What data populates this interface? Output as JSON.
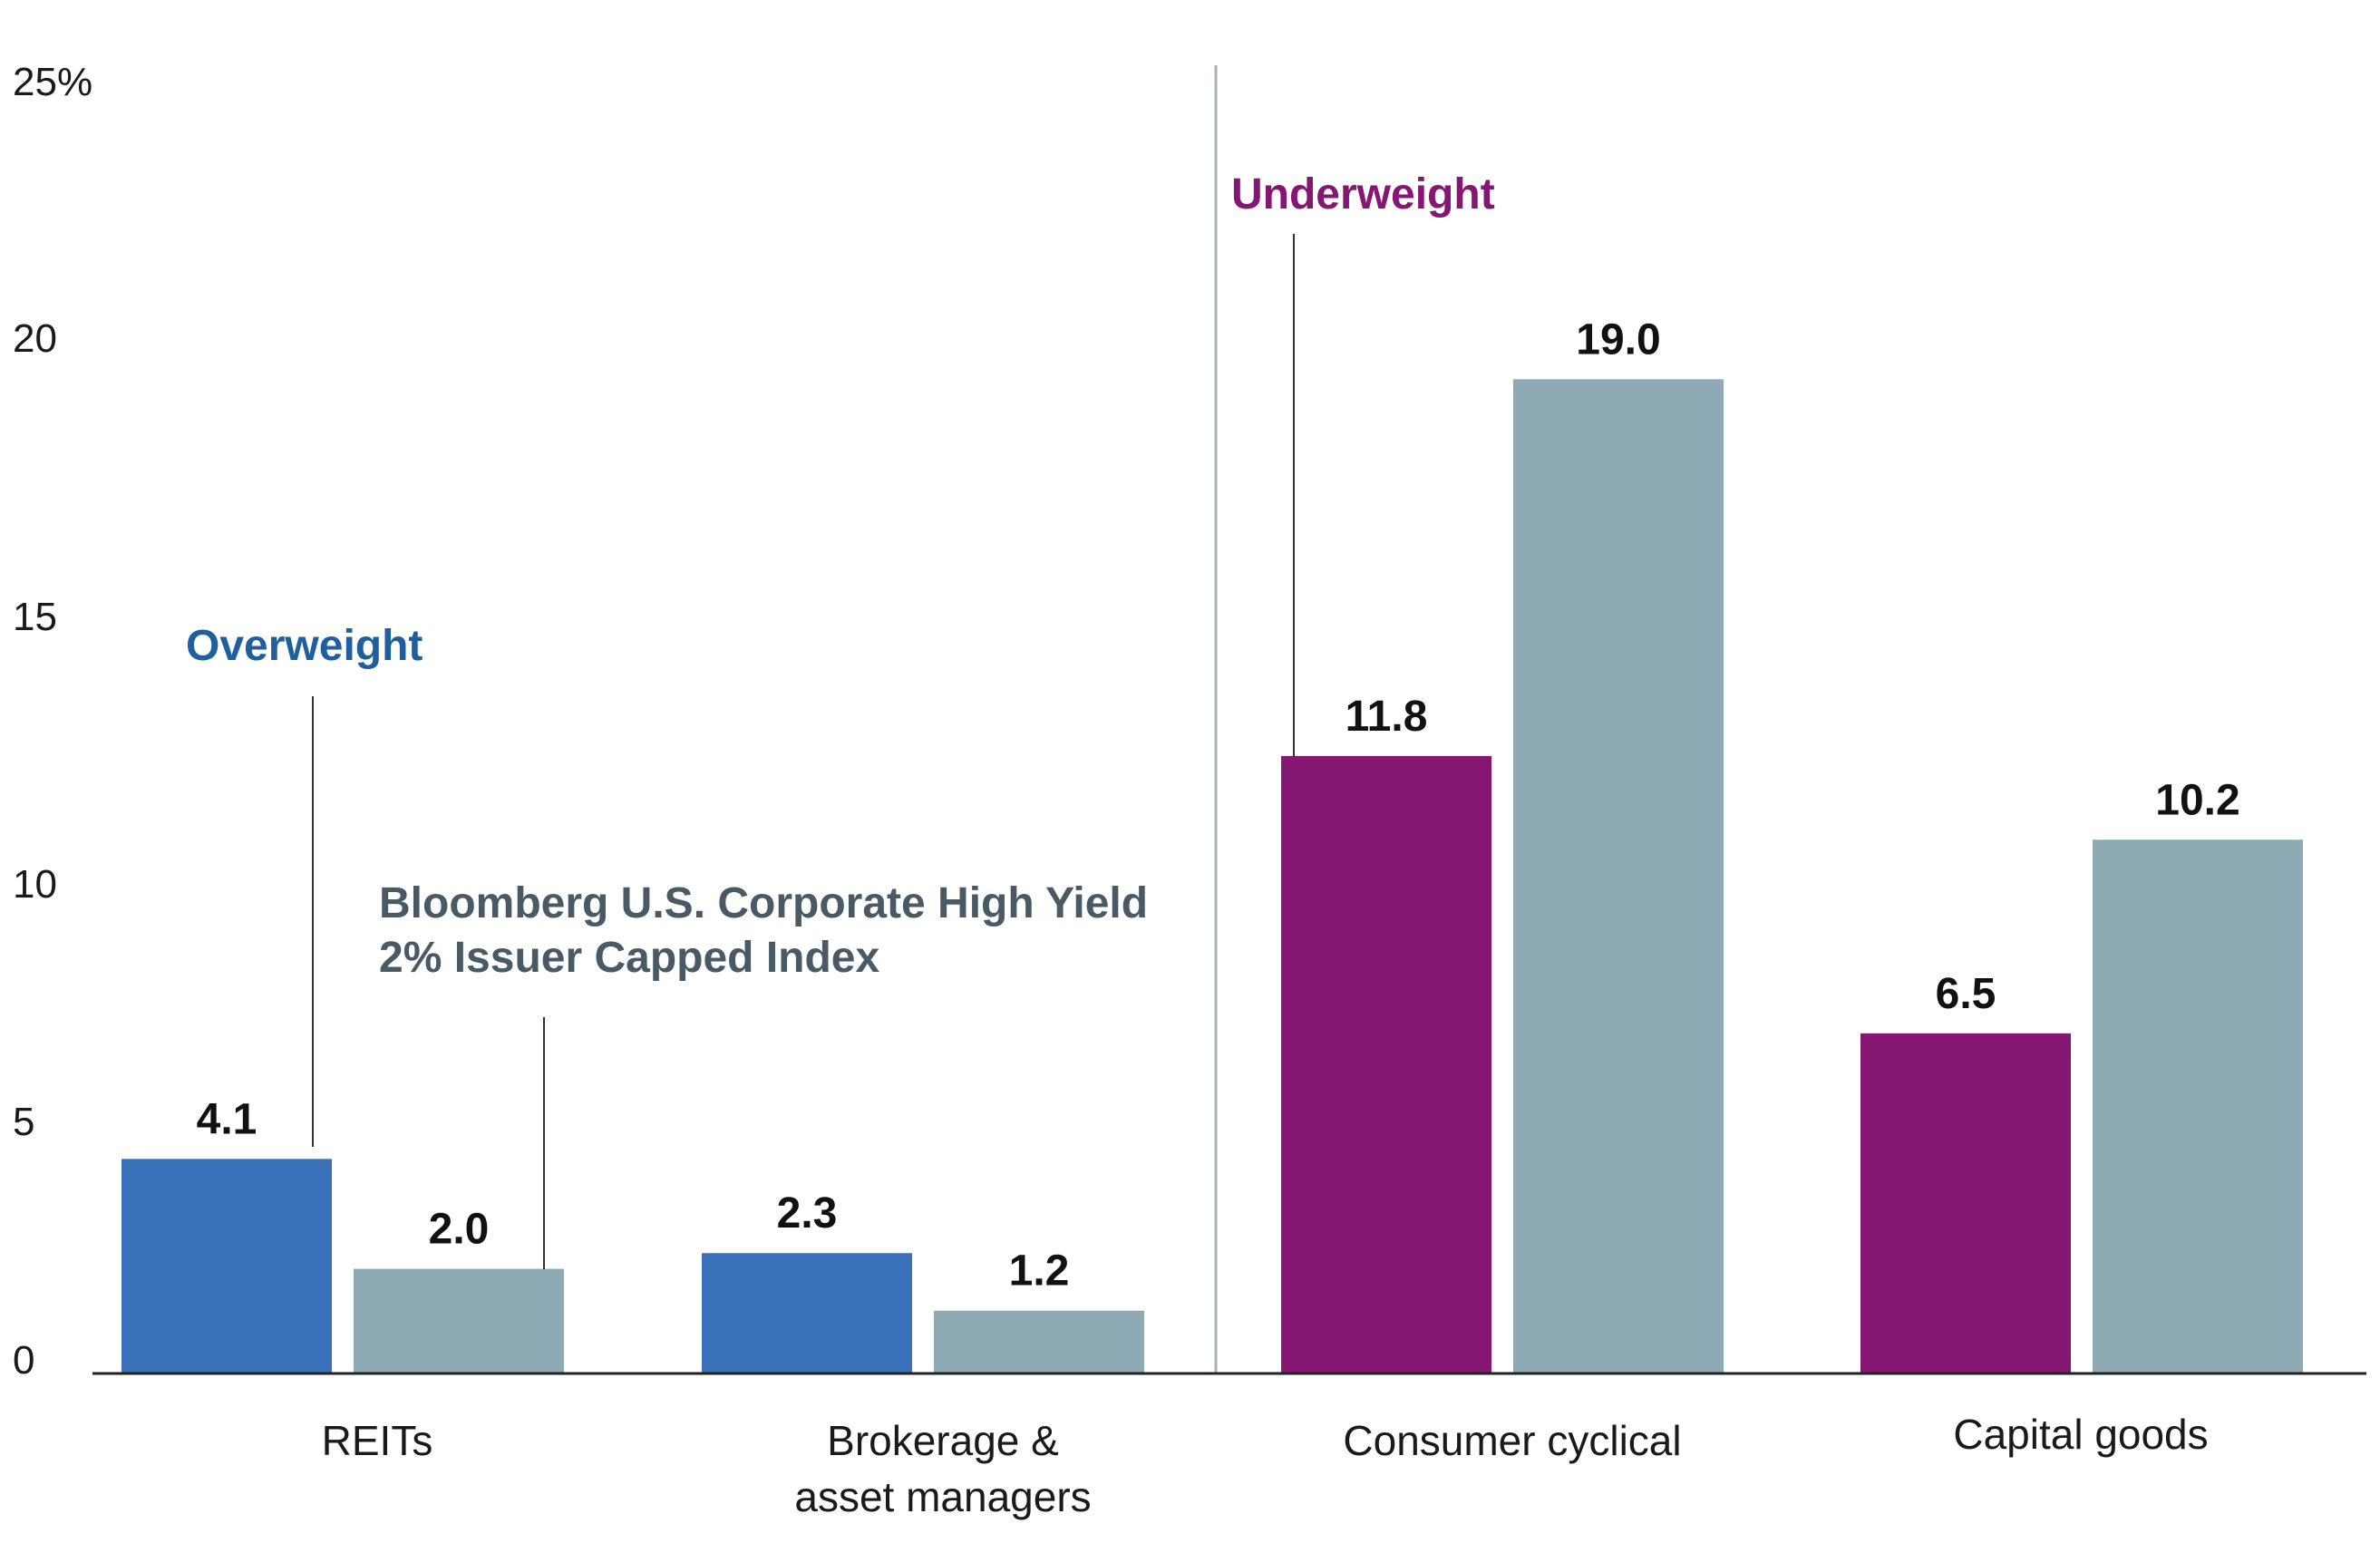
{
  "chart_data": {
    "type": "bar",
    "categories": [
      "REITs",
      "Brokerage & asset managers",
      "Consumer cyclical",
      "Capital goods"
    ],
    "category_lines": [
      [
        "REITs"
      ],
      [
        "Brokerage &",
        "asset managers"
      ],
      [
        "Consumer cyclical"
      ],
      [
        "Capital goods"
      ]
    ],
    "series": [
      {
        "values": [
          4.1,
          2.3,
          11.8,
          6.5
        ],
        "labels": [
          "4.1",
          "2.3",
          "11.8",
          "6.5"
        ],
        "colors": [
          "#3a70b7",
          "#3a70b7",
          "#851671",
          "#851671"
        ]
      },
      {
        "name": "Bloomberg U.S. Corporate High Yield 2% Issuer Capped Index",
        "values": [
          2.0,
          1.2,
          19.0,
          10.2
        ],
        "labels": [
          "2.0",
          "1.2",
          "19.0",
          "10.2"
        ],
        "color": "#8eabb5"
      }
    ],
    "yticks": [
      "0",
      "5",
      "10",
      "15",
      "20",
      "25%"
    ],
    "ylim": [
      0,
      25
    ],
    "annotations": [
      {
        "text": "Overweight",
        "color": "#1f5f9e"
      },
      {
        "text": "Underweight",
        "color": "#851671"
      },
      {
        "lines": [
          "Bloomberg U.S. Corporate High Yield",
          "2% Issuer Capped Index"
        ],
        "color": "#4a5a64"
      }
    ],
    "divider": true,
    "grid": false,
    "title": "",
    "xlabel": "",
    "ylabel": ""
  }
}
